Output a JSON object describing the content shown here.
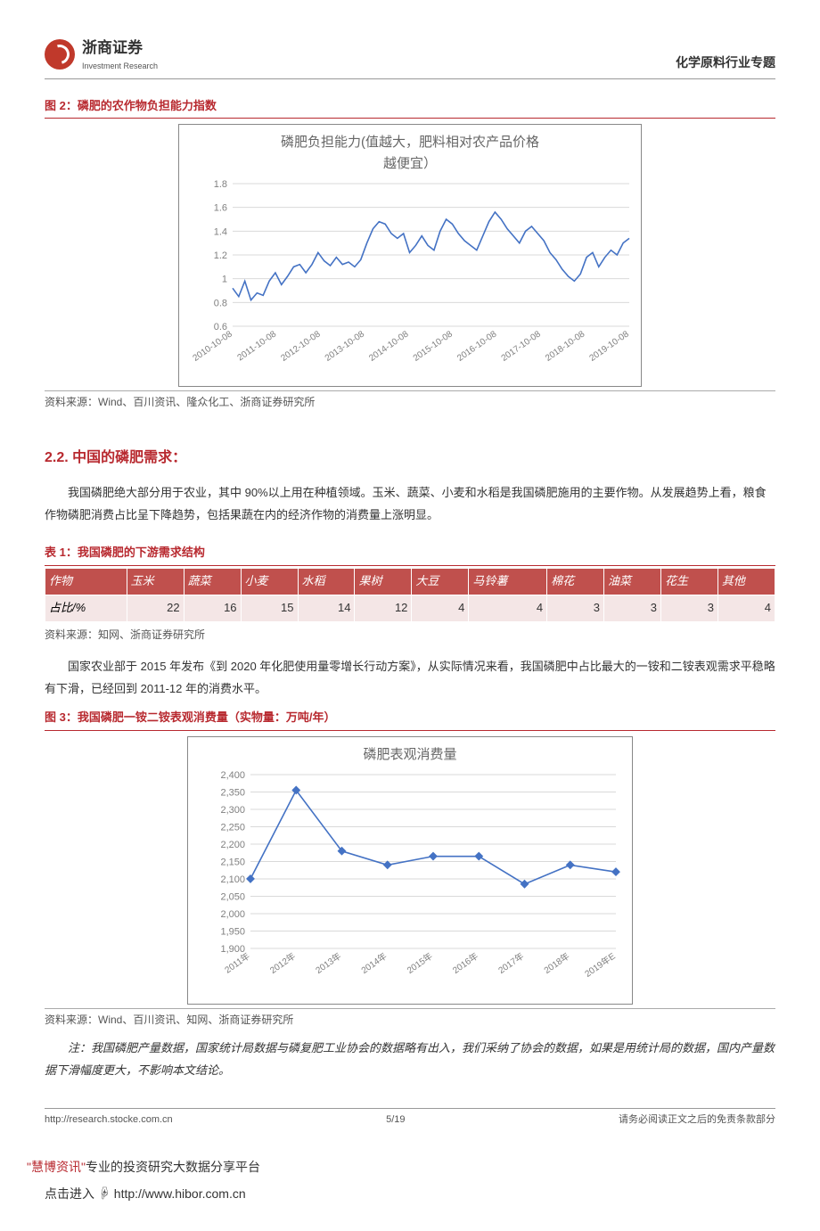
{
  "header": {
    "brand_cn": "浙商证券",
    "brand_en": "Investment Research",
    "right": "化学原料行业专题"
  },
  "fig2": {
    "caption": "图 2：磷肥的农作物负担能力指数",
    "chart_title_l1": "磷肥负担能力(值越大，肥料相对农产品价格",
    "chart_title_l2": "越便宜）",
    "type": "line",
    "line_color": "#4472c4",
    "line_width": 1.6,
    "grid_color": "#d9d9d9",
    "axis_color": "#808080",
    "bg_color": "#ffffff",
    "text_color": "#808080",
    "ylim": [
      0.6,
      1.8
    ],
    "ytick_step": 0.2,
    "yticks": [
      "0.6",
      "0.8",
      "1",
      "1.2",
      "1.4",
      "1.6",
      "1.8"
    ],
    "xlabels": [
      "2010-10-08",
      "2011-10-08",
      "2012-10-08",
      "2013-10-08",
      "2014-10-08",
      "2015-10-08",
      "2016-10-08",
      "2017-10-08",
      "2018-10-08",
      "2019-10-08"
    ],
    "values": [
      0.92,
      0.85,
      0.98,
      0.82,
      0.88,
      0.86,
      0.98,
      1.05,
      0.95,
      1.02,
      1.1,
      1.12,
      1.05,
      1.12,
      1.22,
      1.15,
      1.11,
      1.18,
      1.12,
      1.14,
      1.1,
      1.16,
      1.3,
      1.42,
      1.48,
      1.46,
      1.38,
      1.34,
      1.38,
      1.22,
      1.28,
      1.36,
      1.28,
      1.24,
      1.4,
      1.5,
      1.46,
      1.38,
      1.32,
      1.28,
      1.24,
      1.36,
      1.48,
      1.56,
      1.5,
      1.42,
      1.36,
      1.3,
      1.4,
      1.44,
      1.38,
      1.32,
      1.22,
      1.16,
      1.08,
      1.02,
      0.98,
      1.04,
      1.18,
      1.22,
      1.1,
      1.18,
      1.24,
      1.2,
      1.3,
      1.34
    ],
    "source": "资料来源：Wind、百川资讯、隆众化工、浙商证券研究所"
  },
  "section": {
    "title": "2.2. 中国的磷肥需求：",
    "para1": "我国磷肥绝大部分用于农业，其中 90%以上用在种植领域。玉米、蔬菜、小麦和水稻是我国磷肥施用的主要作物。从发展趋势上看，粮食作物磷肥消费占比呈下降趋势，包括果蔬在内的经济作物的消费量上涨明显。"
  },
  "table1": {
    "caption": "表 1：我国磷肥的下游需求结构",
    "columns": [
      "作物",
      "玉米",
      "蔬菜",
      "小麦",
      "水稻",
      "果树",
      "大豆",
      "马铃薯",
      "棉花",
      "油菜",
      "花生",
      "其他"
    ],
    "row_label": "占比/%",
    "row": [
      22,
      16,
      15,
      14,
      12,
      4,
      4,
      3,
      3,
      3,
      4
    ],
    "source": "资料来源：知网、浙商证券研究所",
    "header_bg": "#c0504d",
    "cell_bg": "#f4e6e6"
  },
  "para2": "国家农业部于 2015 年发布《到 2020 年化肥使用量零增长行动方案》，从实际情况来看，我国磷肥中占比最大的一铵和二铵表观需求平稳略有下滑，已经回到 2011-12 年的消费水平。",
  "fig3": {
    "caption": "图 3：我国磷肥一铵二铵表观消费量（实物量：万吨/年）",
    "chart_title": "磷肥表观消费量",
    "type": "line",
    "line_color": "#4472c4",
    "marker": "diamond",
    "marker_color": "#4472c4",
    "marker_size": 5,
    "line_width": 1.6,
    "grid_color": "#d9d9d9",
    "axis_color": "#808080",
    "bg_color": "#ffffff",
    "text_color": "#808080",
    "ylim": [
      1900,
      2400
    ],
    "ytick_step": 50,
    "yticks": [
      "1,900",
      "1,950",
      "2,000",
      "2,050",
      "2,100",
      "2,150",
      "2,200",
      "2,250",
      "2,300",
      "2,350",
      "2,400"
    ],
    "xlabels": [
      "2011年",
      "2012年",
      "2013年",
      "2014年",
      "2015年",
      "2016年",
      "2017年",
      "2018年",
      "2019年E"
    ],
    "values": [
      2100,
      2355,
      2180,
      2140,
      2165,
      2165,
      2085,
      2140,
      2120
    ],
    "source": "资料来源：Wind、百川资讯、知网、浙商证券研究所"
  },
  "note": "注：我国磷肥产量数据，国家统计局数据与磷复肥工业协会的数据略有出入，我们采纳了协会的数据，如果是用统计局的数据，国内产量数据下滑幅度更大，不影响本文结论。",
  "footer": {
    "left": "http://research.stocke.com.cn",
    "center": "5/19",
    "right": "请务必阅读正文之后的免责条款部分"
  },
  "subfooter": {
    "l1a": "\"慧博资讯\"",
    "l1b": "专业的投资研究大数据分享平台",
    "l2": "点击进入",
    "l2b": "http://www.hibor.com.cn"
  }
}
